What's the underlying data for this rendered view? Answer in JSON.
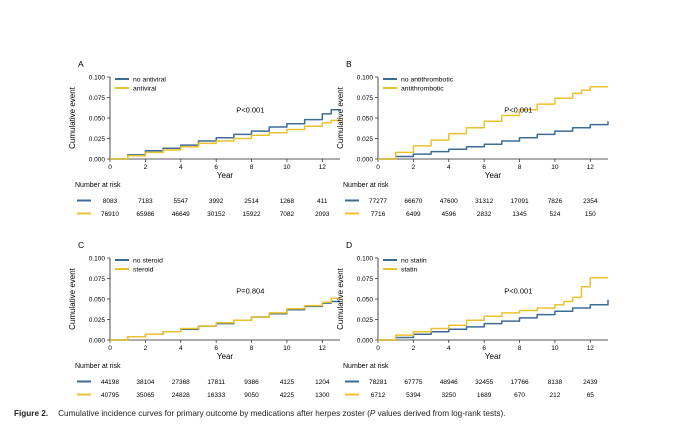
{
  "caption": {
    "label": "Figure 2.",
    "text_before": "Cumulative incidence curves for primary outcome by medications after herpes zoster (",
    "italic": "P",
    "text_after": " values derived from log-rank tests)."
  },
  "colors": {
    "blue": "#3e6b95",
    "gold": "#e9c22d"
  },
  "chart_data": [
    {
      "panel": "A",
      "type": "line",
      "step": true,
      "xlabel": "Year",
      "ylabel": "Cumulative event",
      "xlim": [
        0,
        13
      ],
      "xticks": [
        0,
        2,
        4,
        6,
        8,
        10,
        12
      ],
      "ylim": [
        0,
        0.1
      ],
      "yticks": [
        "0.000",
        "0.025",
        "0.050",
        "0.075",
        "0.100"
      ],
      "pvalue": "P<0.001",
      "legend_position": "top-left",
      "series": [
        {
          "name": "no antiviral",
          "color": "#3e6b95",
          "x": [
            0,
            1,
            2,
            3,
            4,
            5,
            6,
            7,
            8,
            9,
            10,
            11,
            12,
            12.5,
            13
          ],
          "y": [
            0,
            0.005,
            0.01,
            0.013,
            0.017,
            0.022,
            0.026,
            0.03,
            0.034,
            0.039,
            0.043,
            0.048,
            0.055,
            0.06,
            0.06
          ]
        },
        {
          "name": "antiviral",
          "color": "#e9c22d",
          "x": [
            0,
            1,
            2,
            3,
            4,
            5,
            6,
            7,
            8,
            9,
            10,
            11,
            12,
            12.5,
            13
          ],
          "y": [
            0,
            0.004,
            0.008,
            0.011,
            0.015,
            0.019,
            0.022,
            0.025,
            0.029,
            0.032,
            0.036,
            0.04,
            0.044,
            0.047,
            0.049
          ]
        }
      ],
      "risk_title": "Number at risk",
      "risk_rows": [
        {
          "color": "#3e6b95",
          "values": [
            "8083",
            "7183",
            "5547",
            "3992",
            "2514",
            "1268",
            "411"
          ]
        },
        {
          "color": "#e9c22d",
          "values": [
            "76910",
            "65986",
            "46649",
            "30152",
            "15922",
            "7082",
            "2093"
          ]
        }
      ]
    },
    {
      "panel": "B",
      "type": "line",
      "step": true,
      "xlabel": "Year",
      "ylabel": "Cumulative event",
      "xlim": [
        0,
        13
      ],
      "xticks": [
        0,
        2,
        4,
        6,
        8,
        10,
        12
      ],
      "ylim": [
        0,
        0.1
      ],
      "yticks": [
        "0.000",
        "0.025",
        "0.050",
        "0.075",
        "0.100"
      ],
      "pvalue": "P<0.001",
      "legend_position": "top-left",
      "series": [
        {
          "name": "no antithrombotic",
          "color": "#3e6b95",
          "x": [
            0,
            1,
            2,
            3,
            4,
            5,
            6,
            7,
            8,
            9,
            10,
            11,
            12,
            13
          ],
          "y": [
            0,
            0.003,
            0.006,
            0.009,
            0.012,
            0.015,
            0.018,
            0.022,
            0.026,
            0.03,
            0.034,
            0.038,
            0.042,
            0.046
          ]
        },
        {
          "name": "antithrombotic",
          "color": "#e9c22d",
          "x": [
            0,
            1,
            2,
            3,
            4,
            5,
            6,
            7,
            8,
            9,
            10,
            11,
            11.5,
            12,
            13
          ],
          "y": [
            0,
            0.008,
            0.016,
            0.023,
            0.031,
            0.038,
            0.046,
            0.053,
            0.06,
            0.067,
            0.074,
            0.08,
            0.084,
            0.088,
            0.088
          ]
        }
      ],
      "risk_title": "Number at risk",
      "risk_rows": [
        {
          "color": "#3e6b95",
          "values": [
            "77277",
            "66670",
            "47600",
            "31312",
            "17091",
            "7826",
            "2354"
          ]
        },
        {
          "color": "#e9c22d",
          "values": [
            "7716",
            "6499",
            "4596",
            "2832",
            "1345",
            "524",
            "150"
          ]
        }
      ]
    },
    {
      "panel": "C",
      "type": "line",
      "step": true,
      "xlabel": "Year",
      "ylabel": "Cumulative event",
      "xlim": [
        0,
        13
      ],
      "xticks": [
        0,
        2,
        4,
        6,
        8,
        10,
        12
      ],
      "ylim": [
        0,
        0.1
      ],
      "yticks": [
        "0.000",
        "0.025",
        "0.050",
        "0.075",
        "0.100"
      ],
      "pvalue": "P=0.804",
      "legend_position": "top-left",
      "series": [
        {
          "name": "no steroid",
          "color": "#3e6b95",
          "x": [
            0,
            1,
            2,
            3,
            4,
            5,
            6,
            7,
            8,
            9,
            10,
            11,
            12,
            12.5,
            13
          ],
          "y": [
            0,
            0.004,
            0.007,
            0.01,
            0.013,
            0.017,
            0.02,
            0.024,
            0.028,
            0.032,
            0.037,
            0.041,
            0.045,
            0.047,
            0.047
          ]
        },
        {
          "name": "steroid",
          "color": "#e9c22d",
          "x": [
            0,
            1,
            2,
            3,
            4,
            5,
            6,
            7,
            8,
            9,
            10,
            11,
            12,
            12.5,
            13
          ],
          "y": [
            0,
            0.004,
            0.007,
            0.01,
            0.014,
            0.017,
            0.021,
            0.024,
            0.028,
            0.033,
            0.038,
            0.042,
            0.046,
            0.051,
            0.051
          ]
        }
      ],
      "risk_title": "Number at risk",
      "risk_rows": [
        {
          "color": "#3e6b95",
          "values": [
            "44198",
            "38104",
            "27368",
            "17811",
            "9386",
            "4125",
            "1204"
          ]
        },
        {
          "color": "#e9c22d",
          "values": [
            "40795",
            "35065",
            "24828",
            "16333",
            "9050",
            "4225",
            "1300"
          ]
        }
      ]
    },
    {
      "panel": "D",
      "type": "line",
      "step": true,
      "xlabel": "Year",
      "ylabel": "Cumulative event",
      "xlim": [
        0,
        13
      ],
      "xticks": [
        0,
        2,
        4,
        6,
        8,
        10,
        12
      ],
      "ylim": [
        0,
        0.1
      ],
      "yticks": [
        "0.000",
        "0.025",
        "0.050",
        "0.075",
        "0.100"
      ],
      "pvalue": "P<0.001",
      "legend_position": "top-left",
      "series": [
        {
          "name": "no statin",
          "color": "#3e6b95",
          "x": [
            0,
            1,
            2,
            3,
            4,
            5,
            6,
            7,
            8,
            9,
            10,
            11,
            12,
            13
          ],
          "y": [
            0,
            0.003,
            0.007,
            0.01,
            0.013,
            0.016,
            0.02,
            0.023,
            0.027,
            0.031,
            0.035,
            0.039,
            0.043,
            0.049
          ]
        },
        {
          "name": "statin",
          "color": "#e9c22d",
          "x": [
            0,
            1,
            2,
            3,
            4,
            5,
            6,
            7,
            8,
            9,
            10,
            10.5,
            11,
            11.5,
            12,
            13
          ],
          "y": [
            0,
            0.006,
            0.01,
            0.014,
            0.018,
            0.024,
            0.029,
            0.033,
            0.036,
            0.039,
            0.043,
            0.047,
            0.052,
            0.065,
            0.076,
            0.076
          ]
        }
      ],
      "risk_title": "Number at risk",
      "risk_rows": [
        {
          "color": "#3e6b95",
          "values": [
            "78281",
            "67775",
            "48946",
            "32455",
            "17766",
            "8138",
            "2439"
          ]
        },
        {
          "color": "#e9c22d",
          "values": [
            "6712",
            "5394",
            "3250",
            "1689",
            "670",
            "212",
            "65"
          ]
        }
      ]
    }
  ]
}
